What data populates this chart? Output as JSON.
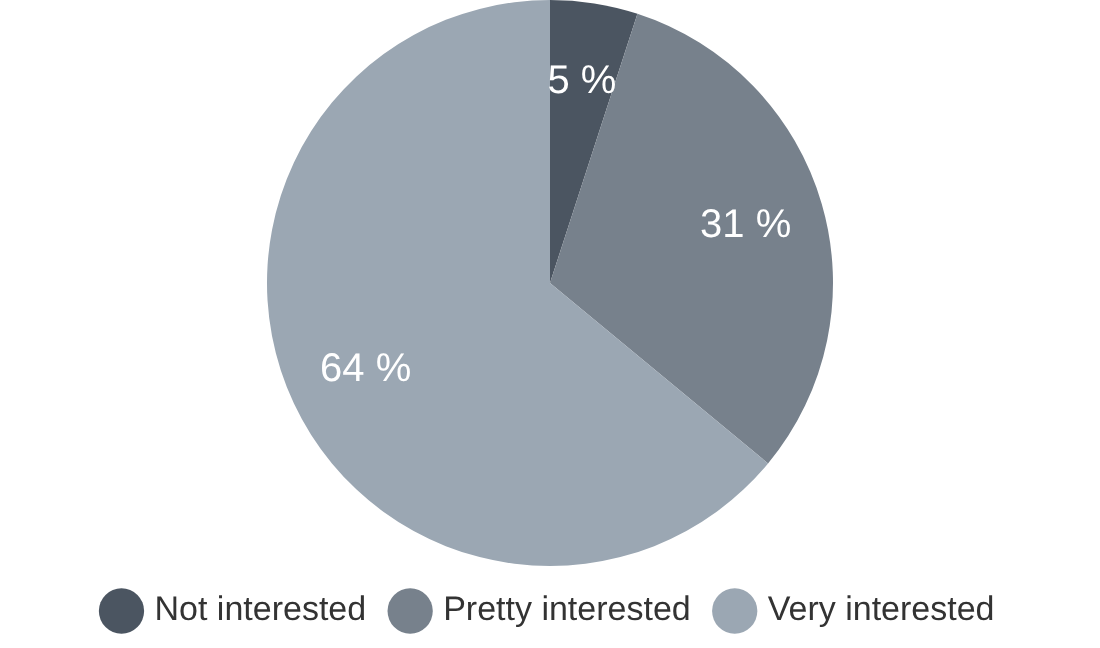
{
  "chart_data": {
    "type": "pie",
    "categories": [
      "Not interested",
      "Pretty interested",
      "Very interested"
    ],
    "values": [
      5,
      31,
      64
    ],
    "value_labels": [
      "5 %",
      "31 %",
      "64 %"
    ],
    "colors": [
      "#4b5561",
      "#77818c",
      "#9ba7b3"
    ],
    "legend": "bottom"
  }
}
